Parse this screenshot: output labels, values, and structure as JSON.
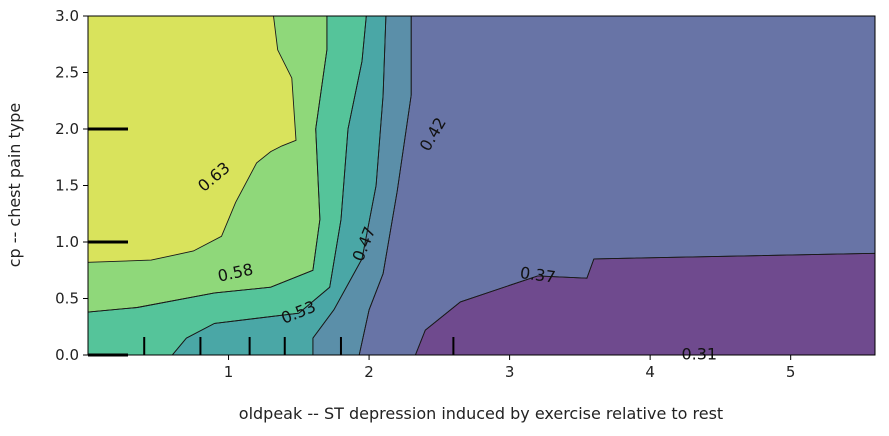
{
  "chart_data": {
    "type": "contour",
    "xlabel": "oldpeak -- ST depression induced by exercise relative to rest",
    "ylabel": "cp -- chest pain type",
    "xlim": [
      0,
      5.6
    ],
    "ylim": [
      0,
      3.0
    ],
    "x_ticks": [
      "1",
      "2",
      "3",
      "4",
      "5"
    ],
    "y_ticks": [
      "0.0",
      "0.5",
      "1.0",
      "1.5",
      "2.0",
      "2.5",
      "3.0"
    ],
    "x_tick_values": [
      1,
      2,
      3,
      4,
      5
    ],
    "y_tick_values": [
      0.0,
      0.5,
      1.0,
      1.5,
      2.0,
      2.5,
      3.0
    ],
    "levels": [
      0.31,
      0.37,
      0.42,
      0.47,
      0.53,
      0.58,
      0.63
    ],
    "contour_labels": [
      "0.31",
      "0.37",
      "0.42",
      "0.47",
      "0.53",
      "0.58",
      "0.63"
    ],
    "colors": [
      "#6f4a8e",
      "#6874a6",
      "#5b8fa9",
      "#4aa7a6",
      "#55c49a",
      "#8fd87a",
      "#d9e35c"
    ],
    "x_deciles": [
      0.4,
      0.8,
      1.15,
      1.4,
      1.8,
      2.6
    ],
    "y_deciles": [
      0,
      1,
      2
    ],
    "regions": [
      {
        "level": 0,
        "pts": [
          [
            2.33,
            0
          ],
          [
            2.4,
            0.22
          ],
          [
            2.65,
            0.47
          ],
          [
            3.2,
            0.7
          ],
          [
            3.55,
            0.68
          ],
          [
            3.6,
            0.85
          ],
          [
            5.6,
            0.9
          ],
          [
            5.6,
            0
          ]
        ]
      },
      {
        "level": 1,
        "pts": [
          [
            1.93,
            0
          ],
          [
            2.0,
            0.4
          ],
          [
            2.1,
            0.72
          ],
          [
            2.2,
            1.45
          ],
          [
            2.3,
            2.3
          ],
          [
            2.3,
            3.0
          ],
          [
            5.6,
            3.0
          ],
          [
            5.6,
            0.9
          ],
          [
            3.6,
            0.85
          ],
          [
            3.55,
            0.68
          ],
          [
            3.2,
            0.7
          ],
          [
            2.65,
            0.47
          ],
          [
            2.4,
            0.22
          ],
          [
            2.33,
            0
          ]
        ]
      },
      {
        "level": 2,
        "pts": [
          [
            1.6,
            0
          ],
          [
            1.6,
            0.15
          ],
          [
            1.75,
            0.4
          ],
          [
            1.95,
            0.85
          ],
          [
            2.05,
            1.5
          ],
          [
            2.1,
            2.3
          ],
          [
            2.12,
            3.0
          ],
          [
            2.3,
            3.0
          ],
          [
            2.3,
            2.3
          ],
          [
            2.2,
            1.45
          ],
          [
            2.1,
            0.72
          ],
          [
            2.0,
            0.4
          ],
          [
            1.93,
            0
          ]
        ]
      },
      {
        "level": 3,
        "pts": [
          [
            0.6,
            0
          ],
          [
            0.7,
            0.15
          ],
          [
            0.9,
            0.28
          ],
          [
            1.5,
            0.37
          ],
          [
            1.72,
            0.6
          ],
          [
            1.8,
            1.2
          ],
          [
            1.85,
            2.0
          ],
          [
            1.95,
            2.6
          ],
          [
            1.98,
            3.0
          ],
          [
            2.12,
            3.0
          ],
          [
            2.1,
            2.3
          ],
          [
            2.05,
            1.5
          ],
          [
            1.95,
            0.85
          ],
          [
            1.75,
            0.4
          ],
          [
            1.6,
            0.15
          ],
          [
            1.6,
            0
          ]
        ]
      },
      {
        "level": 4,
        "pts": [
          [
            0,
            0
          ],
          [
            0,
            0.38
          ],
          [
            0.35,
            0.42
          ],
          [
            0.9,
            0.55
          ],
          [
            1.3,
            0.6
          ],
          [
            1.6,
            0.75
          ],
          [
            1.65,
            1.2
          ],
          [
            1.62,
            2.0
          ],
          [
            1.7,
            2.7
          ],
          [
            1.7,
            3.0
          ],
          [
            1.98,
            3.0
          ],
          [
            1.95,
            2.6
          ],
          [
            1.85,
            2.0
          ],
          [
            1.8,
            1.2
          ],
          [
            1.72,
            0.6
          ],
          [
            1.5,
            0.37
          ],
          [
            0.9,
            0.28
          ],
          [
            0.7,
            0.15
          ],
          [
            0.6,
            0
          ]
        ]
      },
      {
        "level": 5,
        "pts": [
          [
            0,
            0.38
          ],
          [
            0,
            0.82
          ],
          [
            0.45,
            0.84
          ],
          [
            0.75,
            0.92
          ],
          [
            0.95,
            1.05
          ],
          [
            1.05,
            1.35
          ],
          [
            1.2,
            1.7
          ],
          [
            1.3,
            1.8
          ],
          [
            1.38,
            1.85
          ],
          [
            1.48,
            1.9
          ],
          [
            1.45,
            2.45
          ],
          [
            1.35,
            2.7
          ],
          [
            1.32,
            3.0
          ],
          [
            1.7,
            3.0
          ],
          [
            1.7,
            2.7
          ],
          [
            1.62,
            2.0
          ],
          [
            1.65,
            1.2
          ],
          [
            1.6,
            0.75
          ],
          [
            1.3,
            0.6
          ],
          [
            0.9,
            0.55
          ],
          [
            0.35,
            0.42
          ]
        ]
      },
      {
        "level": 6,
        "pts": [
          [
            0,
            0.82
          ],
          [
            0,
            3.0
          ],
          [
            1.32,
            3.0
          ],
          [
            1.35,
            2.7
          ],
          [
            1.45,
            2.45
          ],
          [
            1.48,
            1.9
          ],
          [
            1.38,
            1.85
          ],
          [
            1.3,
            1.8
          ],
          [
            1.2,
            1.7
          ],
          [
            1.05,
            1.35
          ],
          [
            0.95,
            1.05
          ],
          [
            0.75,
            0.92
          ],
          [
            0.45,
            0.84
          ]
        ]
      }
    ],
    "label_positions": [
      {
        "text": "0.31",
        "x": 4.35,
        "y": 0.0,
        "rot": 0
      },
      {
        "text": "0.37",
        "x": 3.2,
        "y": 0.7,
        "rot": 8
      },
      {
        "text": "0.42",
        "x": 2.46,
        "y": 1.95,
        "rot": -60
      },
      {
        "text": "0.47",
        "x": 1.97,
        "y": 0.98,
        "rot": -68
      },
      {
        "text": "0.53",
        "x": 1.5,
        "y": 0.37,
        "rot": -22
      },
      {
        "text": "0.58",
        "x": 1.05,
        "y": 0.72,
        "rot": -12
      },
      {
        "text": "0.63",
        "x": 0.9,
        "y": 1.57,
        "rot": -40
      }
    ]
  }
}
